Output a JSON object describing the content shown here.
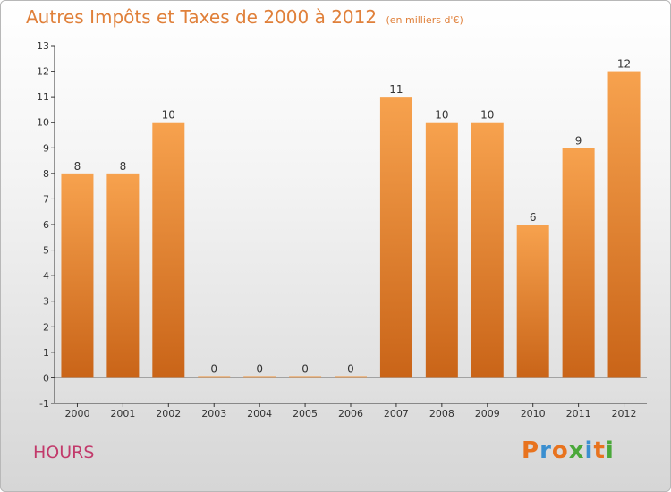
{
  "chart_data": {
    "type": "bar",
    "title": "Autres Impôts et Taxes de 2000 à 2012",
    "subtitle": "(en milliers d'€)",
    "categories": [
      "2000",
      "2001",
      "2002",
      "2003",
      "2004",
      "2005",
      "2006",
      "2007",
      "2008",
      "2009",
      "2010",
      "2011",
      "2012"
    ],
    "values": [
      8,
      8,
      10,
      0,
      0,
      0,
      0,
      11,
      10,
      10,
      6,
      9,
      12
    ],
    "ylim": [
      -1,
      13
    ],
    "yticks": [
      -1,
      0,
      1,
      2,
      3,
      4,
      5,
      6,
      7,
      8,
      9,
      10,
      11,
      12,
      13
    ],
    "grid": false,
    "bar_color": "#f0903a"
  },
  "footer": {
    "place": "HOURS",
    "logo": [
      "P",
      "r",
      "o",
      "x",
      "i",
      "t",
      "i"
    ],
    "logo_colors": [
      "#e8731e",
      "#3b8fd0",
      "#e8731e",
      "#4aa83a",
      "#3b8fd0",
      "#e8731e",
      "#4aa83a"
    ]
  }
}
